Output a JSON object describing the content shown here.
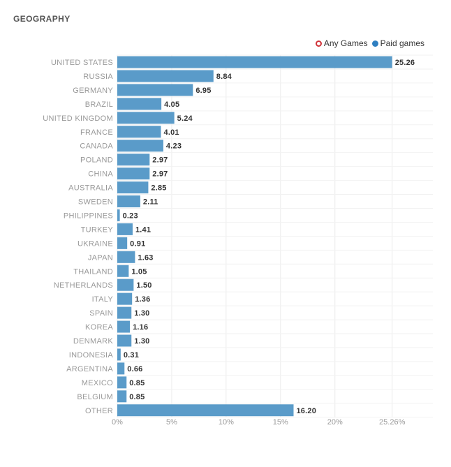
{
  "section": {
    "title": "GEOGRAPHY"
  },
  "legend": {
    "items": [
      {
        "label": "Any Games",
        "style": "outline",
        "color": "#d0343a"
      },
      {
        "label": "Paid games",
        "style": "filled",
        "color": "#2f7fc1"
      }
    ]
  },
  "chart_data": {
    "type": "bar",
    "orientation": "horizontal",
    "categories": [
      "UNITED STATES",
      "RUSSIA",
      "GERMANY",
      "BRAZIL",
      "UNITED KINGDOM",
      "FRANCE",
      "CANADA",
      "POLAND",
      "CHINA",
      "AUSTRALIA",
      "SWEDEN",
      "PHILIPPINES",
      "TURKEY",
      "UKRAINE",
      "JAPAN",
      "THAILAND",
      "NETHERLANDS",
      "ITALY",
      "SPAIN",
      "KOREA",
      "DENMARK",
      "INDONESIA",
      "ARGENTINA",
      "MEXICO",
      "BELGIUM",
      "OTHER"
    ],
    "series": [
      {
        "name": "Paid games",
        "color": "#5a9bc9",
        "values": [
          25.26,
          8.84,
          6.95,
          4.05,
          5.24,
          4.01,
          4.23,
          2.97,
          2.97,
          2.85,
          2.11,
          0.23,
          1.41,
          0.91,
          1.63,
          1.05,
          1.5,
          1.36,
          1.3,
          1.16,
          1.3,
          0.31,
          0.66,
          0.85,
          0.85,
          16.2
        ],
        "value_labels": [
          "25.26",
          "8.84",
          "6.95",
          "4.05",
          "5.24",
          "4.01",
          "4.23",
          "2.97",
          "2.97",
          "2.85",
          "2.11",
          "0.23",
          "1.41",
          "0.91",
          "1.63",
          "1.05",
          "1.50",
          "1.36",
          "1.30",
          "1.16",
          "1.30",
          "0.31",
          "0.66",
          "0.85",
          "0.85",
          "16.20"
        ]
      }
    ],
    "x_ticks": [
      0,
      5,
      10,
      15,
      20,
      25.26
    ],
    "x_tick_labels": [
      "0%",
      "5%",
      "10%",
      "15%",
      "20%",
      "25.26%"
    ],
    "xlim": [
      0,
      29
    ],
    "grid": true,
    "legend_position": "top-right"
  }
}
